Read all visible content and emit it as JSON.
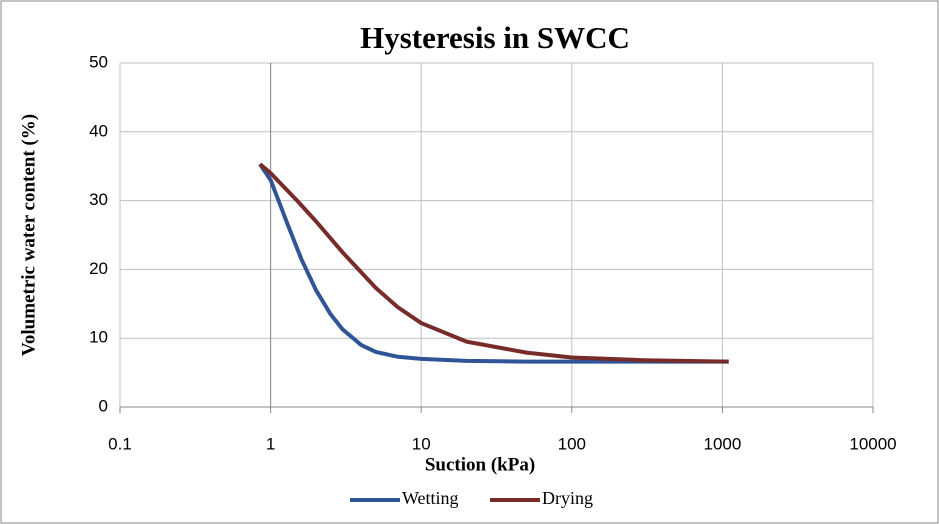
{
  "chart_data": {
    "type": "line",
    "title": "Hysteresis in SWCC",
    "x_label": "Suction (kPa)",
    "y_label": "Volumetric water content (%)",
    "x_log": true,
    "grid": true,
    "legend": "bottom",
    "xlim": [
      0.1,
      10000
    ],
    "xticks": [
      0.1,
      1,
      10,
      100,
      1000,
      10000
    ],
    "ylim": [
      0,
      50
    ],
    "yticks": [
      0,
      10,
      20,
      30,
      40,
      50
    ],
    "series": [
      {
        "name": "Wetting",
        "color": "#2f5597",
        "x": [
          0.85,
          1,
          1.3,
          1.6,
          2,
          2.5,
          3,
          4,
          5,
          7,
          10,
          20,
          50,
          100,
          1000,
          1100
        ],
        "values": [
          35.3,
          33,
          26.5,
          21.5,
          17,
          13.5,
          11.3,
          9,
          8,
          7.3,
          7,
          6.7,
          6.6,
          6.6,
          6.6,
          6.6
        ]
      },
      {
        "name": "Drying",
        "color": "#772c2a",
        "x": [
          0.85,
          1,
          1.5,
          2,
          3,
          5,
          7,
          10,
          20,
          50,
          100,
          300,
          1100
        ],
        "values": [
          35.3,
          34,
          30,
          27,
          22.5,
          17.3,
          14.5,
          12.2,
          9.5,
          7.9,
          7.2,
          6.8,
          6.6
        ]
      }
    ]
  }
}
